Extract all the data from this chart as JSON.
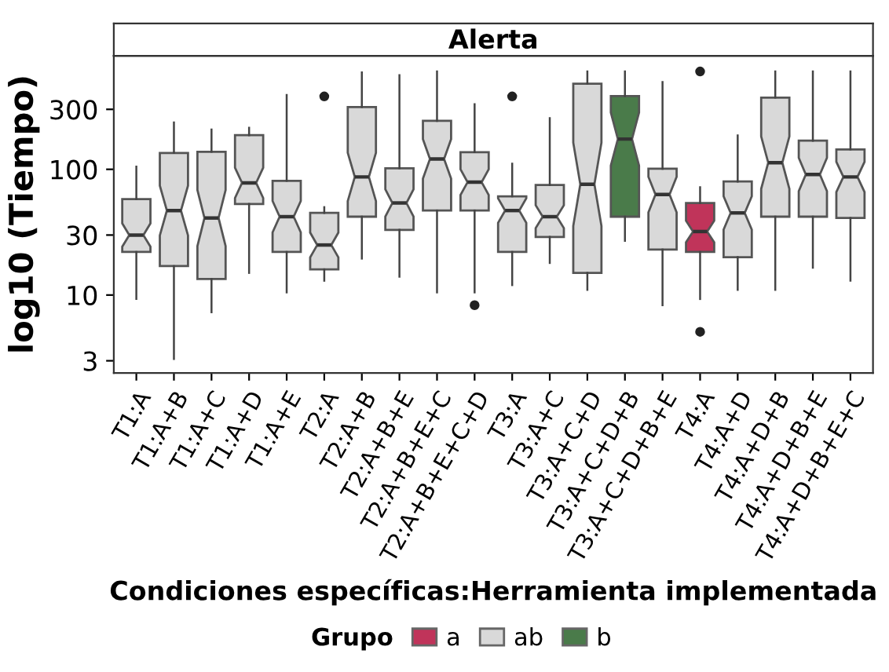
{
  "chart_data": {
    "type": "box",
    "title": "Alerta",
    "xlabel": "Condiciones específicas:Herramienta implementada",
    "ylabel": "log10 (Tiempo)",
    "legend_title": "Grupo",
    "categories": [
      "T1:A",
      "T1:A+B",
      "T1:A+C",
      "T1:A+D",
      "T1:A+E",
      "T2:A",
      "T2:A+B",
      "T2:A+B+E",
      "T2:A+B+E+C",
      "T2:A+B+E+C+D",
      "T3:A",
      "T3:A+C",
      "T3:A+C+D",
      "T3:A+C+D+B",
      "T3:A+C+D+B+E",
      "T4:A",
      "T4:A+D",
      "T4:A+D+B",
      "T4:A+D+B+E",
      "T4:A+D+B+E+C"
    ],
    "log": "y",
    "ylim": [
      2.4,
      800
    ],
    "yticks": [
      3,
      10,
      30,
      100,
      300
    ],
    "grid": false,
    "legend": "bottom",
    "series": [
      {
        "name": "a",
        "color": "#c0345a",
        "boxes": [
          null,
          null,
          null,
          null,
          null,
          null,
          null,
          null,
          null,
          null,
          null,
          null,
          null,
          null,
          null,
          {
            "low": 9.3,
            "q1": 22,
            "median": 32,
            "q3": 54,
            "high": 72,
            "outliers": [
              600,
              5.1
            ]
          },
          null,
          null,
          null,
          null
        ]
      },
      {
        "name": "ab",
        "color": "#d9d9d9",
        "boxes": [
          {
            "low": 9.3,
            "q1": 22,
            "median": 30,
            "q3": 58,
            "high": 105
          },
          {
            "low": 3.1,
            "q1": 17,
            "median": 47,
            "q3": 135,
            "high": 236
          },
          {
            "low": 7.3,
            "q1": 13.4,
            "median": 41,
            "q3": 138,
            "high": 207
          },
          {
            "low": 15,
            "q1": 53,
            "median": 78,
            "q3": 187,
            "high": 214
          },
          {
            "low": 10.5,
            "q1": 22,
            "median": 42,
            "q3": 81,
            "high": 390
          },
          {
            "low": 13,
            "q1": 16,
            "median": 25,
            "q3": 45,
            "high": 50,
            "outliers": [
              380
            ]
          },
          {
            "low": 19.5,
            "q1": 42,
            "median": 87,
            "q3": 313,
            "high": 590
          },
          {
            "low": 14,
            "q1": 33,
            "median": 54,
            "q3": 102,
            "high": 560
          },
          {
            "low": 10.5,
            "q1": 47,
            "median": 121,
            "q3": 243,
            "high": 600
          },
          {
            "low": 10.5,
            "q1": 47,
            "median": 79,
            "q3": 137,
            "high": 330,
            "outliers": [
              8.3
            ]
          },
          {
            "low": 12,
            "q1": 22,
            "median": 47,
            "q3": 61,
            "high": 111,
            "outliers": [
              380
            ]
          },
          {
            "low": 18,
            "q1": 29,
            "median": 42,
            "q3": 75,
            "high": 255
          },
          {
            "low": 11,
            "q1": 15,
            "median": 76,
            "q3": 480,
            "high": 600
          },
          null,
          {
            "low": 8.3,
            "q1": 23,
            "median": 63,
            "q3": 101,
            "high": 495
          },
          null,
          {
            "low": 11,
            "q1": 20,
            "median": 45,
            "q3": 80,
            "high": 186
          },
          {
            "low": 11,
            "q1": 42,
            "median": 113,
            "q3": 372,
            "high": 600
          },
          {
            "low": 16.5,
            "q1": 42,
            "median": 91,
            "q3": 169,
            "high": 600
          },
          {
            "low": 13,
            "q1": 41,
            "median": 87,
            "q3": 144,
            "high": 600
          }
        ]
      },
      {
        "name": "b",
        "color": "#4a7b4a",
        "boxes": [
          null,
          null,
          null,
          null,
          null,
          null,
          null,
          null,
          null,
          null,
          null,
          null,
          null,
          {
            "low": 27,
            "q1": 42,
            "median": 174,
            "q3": 383,
            "high": 600
          },
          null,
          null,
          null,
          null,
          null,
          null
        ]
      }
    ]
  }
}
